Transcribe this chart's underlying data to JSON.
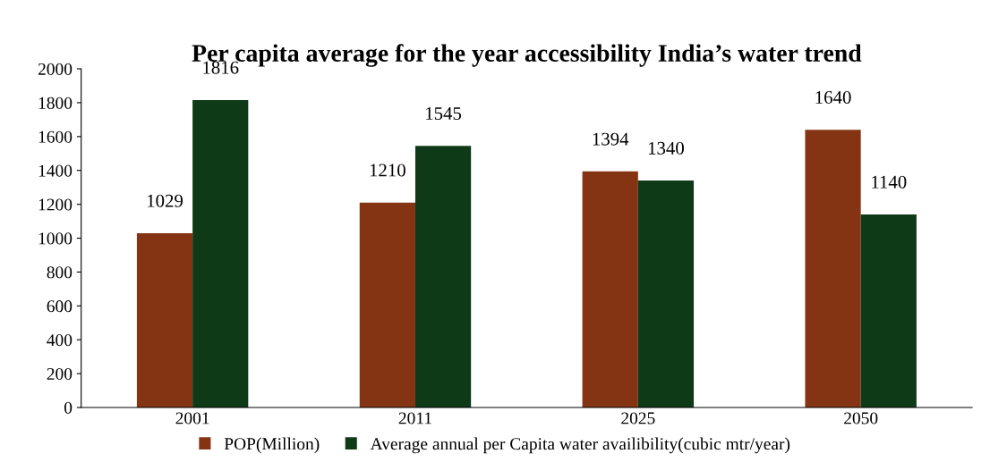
{
  "chart_data": {
    "type": "bar",
    "title": "Per capita average for the year accessibility India’s water trend",
    "categories": [
      "2001",
      "2011",
      "2025",
      "2050"
    ],
    "series": [
      {
        "name": "POP(Million)",
        "color": "#843413",
        "values": [
          1029,
          1210,
          1394,
          1640
        ]
      },
      {
        "name": "Average annual per Capita water availibility(cubic mtr/year)",
        "color": "#0f3a17",
        "values": [
          1816,
          1545,
          1340,
          1140
        ]
      }
    ],
    "ylim": [
      0,
      2000
    ],
    "yticks": [
      0,
      200,
      400,
      600,
      800,
      1000,
      1200,
      1400,
      1600,
      1800,
      2000
    ],
    "grid": false,
    "legend": "bottom",
    "data_labels": true
  }
}
